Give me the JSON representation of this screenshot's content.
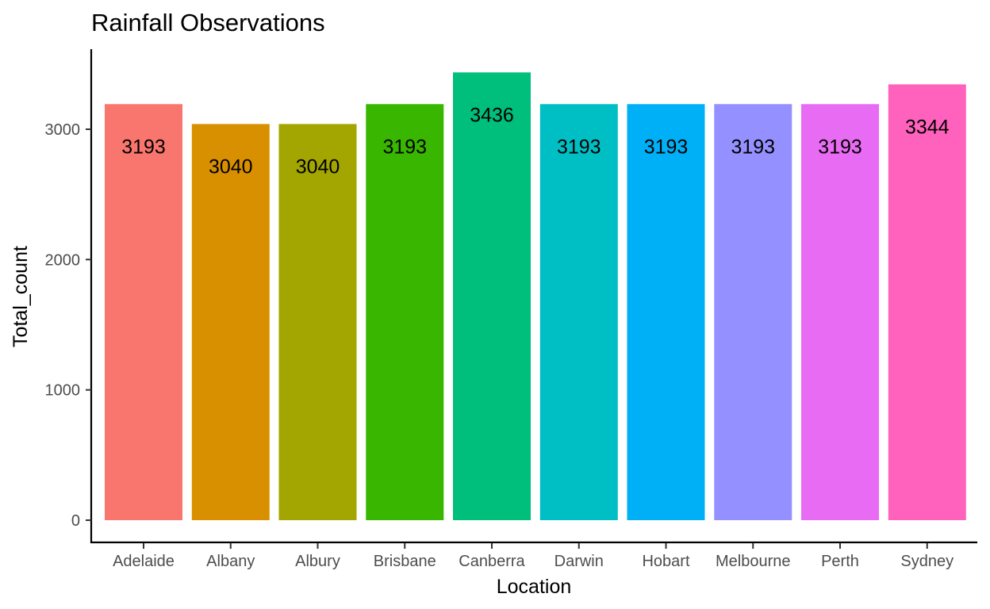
{
  "chart_data": {
    "type": "bar",
    "title": "Rainfall Observations",
    "xlabel": "Location",
    "ylabel": "Total_count",
    "categories": [
      "Adelaide",
      "Albany",
      "Albury",
      "Brisbane",
      "Canberra",
      "Darwin",
      "Hobart",
      "Melbourne",
      "Perth",
      "Sydney"
    ],
    "values": [
      3193,
      3040,
      3040,
      3193,
      3436,
      3193,
      3193,
      3193,
      3193,
      3344
    ],
    "data_labels": [
      "3193",
      "3040",
      "3040",
      "3193",
      "3436",
      "3193",
      "3193",
      "3193",
      "3193",
      "3344"
    ],
    "colors": [
      "#F8766D",
      "#D89000",
      "#A3A500",
      "#39B600",
      "#00BF7D",
      "#00BFC4",
      "#00B0F6",
      "#9590FF",
      "#E76BF3",
      "#FF62BC"
    ],
    "yticks": [
      0,
      1000,
      2000,
      3000
    ],
    "ytick_labels": [
      "0",
      "1000",
      "2000",
      "3000"
    ],
    "ylim": [
      0,
      3436
    ],
    "grid": false,
    "legend": "none"
  }
}
